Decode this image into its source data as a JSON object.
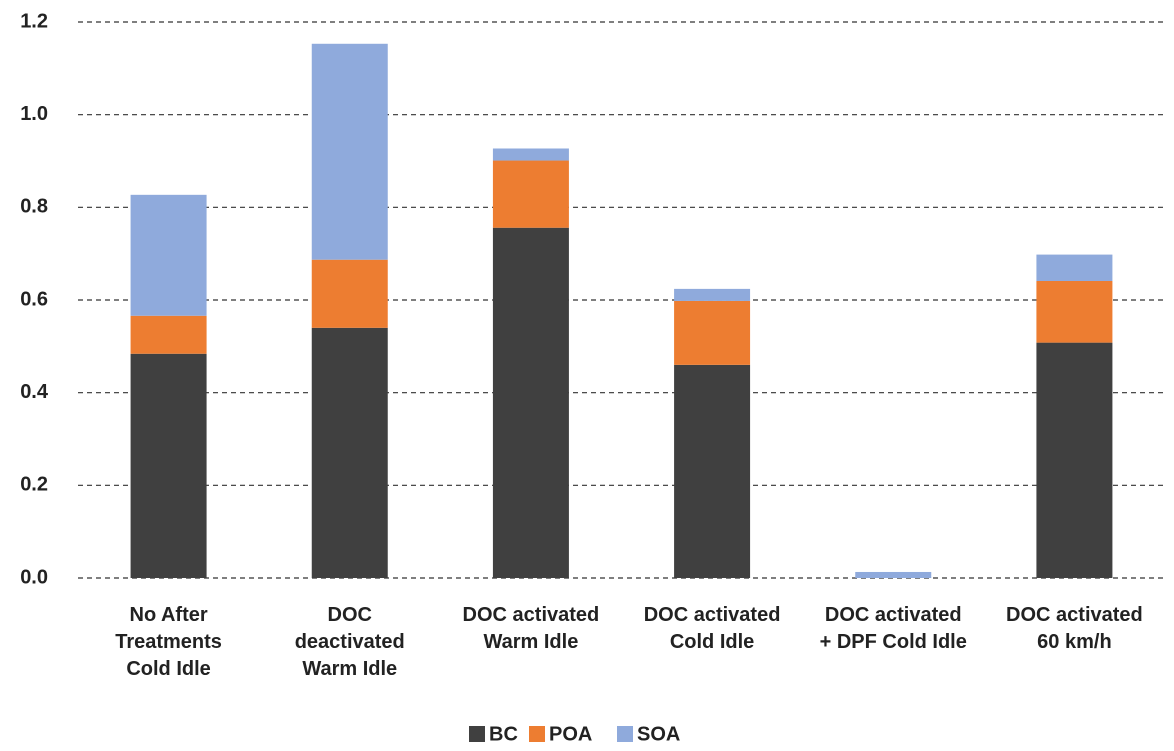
{
  "chart_data": {
    "type": "stacked_bar",
    "categories": [
      "No After\nTreatments\nCold Idle",
      "DOC\ndeactivated\nWarm Idle",
      "DOC activated\nWarm Idle",
      "DOC activated\nCold Idle",
      "DOC activated\n+ DPF Cold Idle",
      "DOC activated\n60 km/h"
    ],
    "series": [
      {
        "name": "BC",
        "color": "#404040",
        "values": [
          0.484,
          0.54,
          0.756,
          0.46,
          0,
          0.508
        ]
      },
      {
        "name": "POA",
        "color": "#ed7d31",
        "values": [
          0.082,
          0.147,
          0.145,
          0.138,
          0,
          0.133
        ]
      },
      {
        "name": "SOA",
        "color": "#8faadc",
        "values": [
          0.261,
          0.466,
          0.026,
          0.026,
          0.013,
          0.057
        ]
      }
    ],
    "ylim": [
      0,
      1.2
    ],
    "yticks": [
      {
        "value": 0,
        "label": "0.0"
      },
      0.2,
      0.4,
      0.6,
      0.8,
      {
        "value": 1,
        "label": "1.0"
      },
      1.2
    ],
    "grid": true,
    "legend": "bottom"
  }
}
